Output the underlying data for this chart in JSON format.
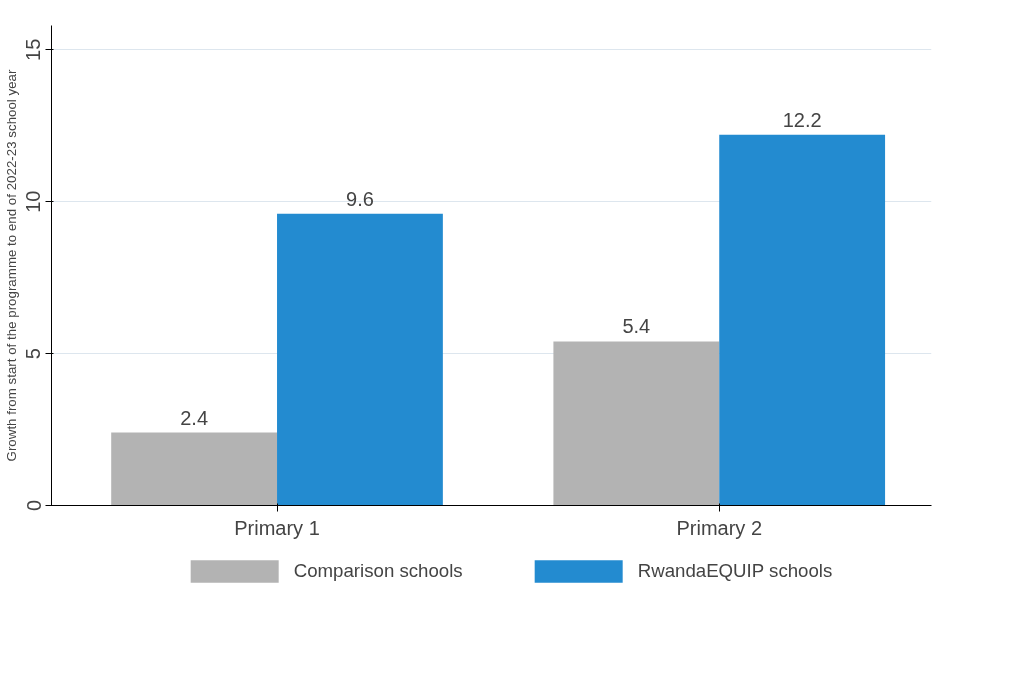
{
  "chart_data": {
    "type": "bar",
    "ylabel": "Growth from start of the programme to end of 2022-23 school year",
    "categories": [
      "Primary 1",
      "Primary 2"
    ],
    "series": [
      {
        "name": "Comparison schools",
        "color": "#b3b3b3",
        "values": [
          2.4,
          5.4
        ]
      },
      {
        "name": "RwandaEQUIP schools",
        "color": "#238bd0",
        "values": [
          9.6,
          12.2
        ]
      }
    ],
    "ylim": [
      0,
      15.8
    ],
    "yticks": [
      0,
      5,
      10,
      15
    ],
    "grid": "y",
    "legend": "bottom",
    "data_labels": true
  }
}
